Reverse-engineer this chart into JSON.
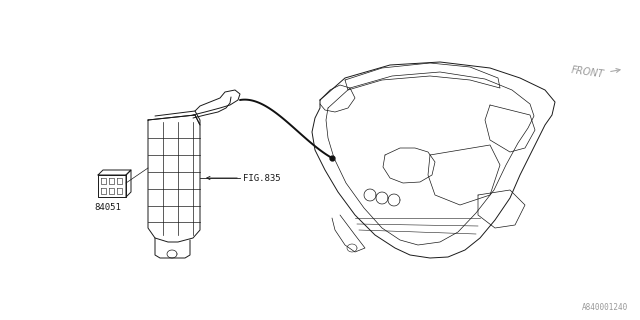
{
  "bg_color": "#ffffff",
  "line_color": "#1a1a1a",
  "label_84051": "84051",
  "label_fig835": "FIG.835",
  "label_front": "FRONT",
  "label_part_num": "A840001240",
  "fig_size": [
    6.4,
    3.2
  ],
  "dpi": 100
}
